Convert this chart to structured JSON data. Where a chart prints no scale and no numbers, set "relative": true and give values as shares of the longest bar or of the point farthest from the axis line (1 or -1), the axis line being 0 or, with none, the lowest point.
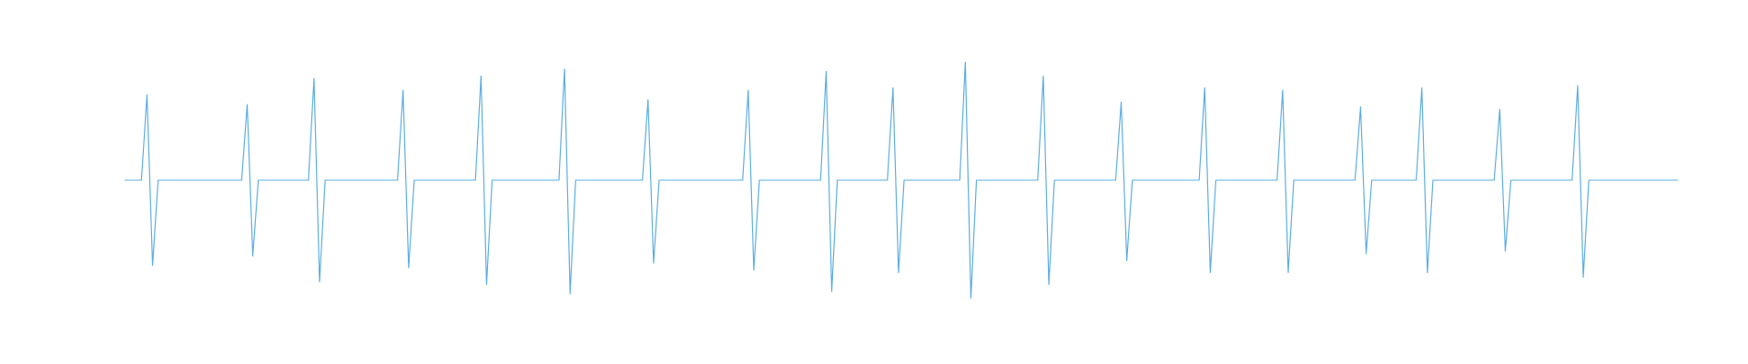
{
  "chart_data": {
    "type": "line",
    "relative": true,
    "tick_labels": false,
    "marker": "none",
    "categories": [
      null,
      null,
      null,
      null,
      null,
      null,
      null,
      null,
      null,
      null,
      null,
      null,
      null,
      null,
      null,
      null,
      null,
      null,
      null,
      null,
      null,
      null,
      null,
      null,
      null,
      null,
      null,
      null,
      null,
      null,
      null,
      null,
      null,
      null,
      null,
      null,
      null,
      null,
      null,
      null,
      null,
      null,
      null,
      null,
      null,
      null,
      null,
      null,
      null,
      null,
      null,
      null,
      null,
      null,
      null,
      null,
      null,
      null,
      null,
      null,
      null,
      null,
      null,
      null,
      null,
      null,
      null,
      null,
      null,
      null,
      null,
      null,
      null,
      null,
      null,
      null,
      null,
      null,
      null,
      null,
      null,
      null,
      null,
      null,
      null,
      null,
      null,
      null,
      null,
      null,
      null,
      null,
      null,
      null,
      null,
      null,
      null,
      null,
      null,
      null,
      null,
      null,
      null,
      null,
      null,
      null,
      null,
      null,
      null,
      null,
      null,
      null,
      null,
      null,
      null,
      null,
      null,
      null,
      null,
      null,
      null,
      null,
      null,
      null,
      null,
      null,
      null,
      null,
      null,
      null,
      null,
      null,
      null,
      null,
      null,
      null,
      null,
      null,
      null,
      null,
      null,
      null,
      null,
      null,
      null,
      null,
      null,
      null,
      null,
      null,
      null,
      null,
      null,
      null,
      null,
      null,
      null,
      null,
      null,
      null,
      null,
      null,
      null,
      null,
      null,
      null,
      null,
      null,
      null,
      null,
      null,
      null,
      null,
      null,
      null,
      null,
      null,
      null,
      null,
      null,
      null,
      null,
      null,
      null,
      null,
      null,
      null,
      null,
      null,
      null,
      null,
      null,
      null,
      null,
      null,
      null,
      null,
      null,
      null,
      null,
      null,
      null,
      null,
      null,
      null,
      null,
      null,
      null,
      null,
      null,
      null,
      null,
      null,
      null,
      null,
      null,
      null,
      null,
      null,
      null,
      null,
      null,
      null,
      null,
      null,
      null,
      null,
      null,
      null,
      null,
      null,
      null,
      null,
      null,
      null,
      null,
      null,
      null,
      null,
      null,
      null,
      null,
      null,
      null,
      null,
      null,
      null,
      null,
      null,
      null,
      null,
      null,
      null,
      null,
      null,
      null,
      null,
      null,
      null,
      null,
      null,
      null,
      null,
      null,
      null,
      null,
      null,
      null,
      null,
      null,
      null,
      null,
      null,
      null,
      null,
      null,
      null,
      null,
      null,
      null
    ],
    "series": [
      {
        "color": "#5dade2",
        "values": [
          0.5,
          0.5,
          0.5,
          0.5,
          0.86,
          0.14,
          0.5,
          0.5,
          0.5,
          0.5,
          0.5,
          0.5,
          0.5,
          0.5,
          0.5,
          0.5,
          0.5,
          0.5,
          0.5,
          0.5,
          0.5,
          0.5,
          0.82,
          0.18,
          0.5,
          0.5,
          0.5,
          0.5,
          0.5,
          0.5,
          0.5,
          0.5,
          0.5,
          0.5,
          0.93,
          0.07,
          0.5,
          0.5,
          0.5,
          0.5,
          0.5,
          0.5,
          0.5,
          0.5,
          0.5,
          0.5,
          0.5,
          0.5,
          0.5,
          0.5,
          0.88,
          0.13,
          0.5,
          0.5,
          0.5,
          0.5,
          0.5,
          0.5,
          0.5,
          0.5,
          0.5,
          0.5,
          0.5,
          0.5,
          0.94,
          0.06,
          0.5,
          0.5,
          0.5,
          0.5,
          0.5,
          0.5,
          0.5,
          0.5,
          0.5,
          0.5,
          0.5,
          0.5,
          0.5,
          0.97,
          0.02,
          0.5,
          0.5,
          0.5,
          0.5,
          0.5,
          0.5,
          0.5,
          0.5,
          0.5,
          0.5,
          0.5,
          0.5,
          0.5,
          0.84,
          0.15,
          0.5,
          0.5,
          0.5,
          0.5,
          0.5,
          0.5,
          0.5,
          0.5,
          0.5,
          0.5,
          0.5,
          0.5,
          0.5,
          0.5,
          0.5,
          0.5,
          0.88,
          0.12,
          0.5,
          0.5,
          0.5,
          0.5,
          0.5,
          0.5,
          0.5,
          0.5,
          0.5,
          0.5,
          0.5,
          0.5,
          0.96,
          0.03,
          0.5,
          0.5,
          0.5,
          0.5,
          0.5,
          0.5,
          0.5,
          0.5,
          0.5,
          0.5,
          0.89,
          0.11,
          0.5,
          0.5,
          0.5,
          0.5,
          0.5,
          0.5,
          0.5,
          0.5,
          0.5,
          0.5,
          0.5,
          1,
          0,
          0.5,
          0.5,
          0.5,
          0.5,
          0.5,
          0.5,
          0.5,
          0.5,
          0.5,
          0.5,
          0.5,
          0.5,
          0.94,
          0.06,
          0.5,
          0.5,
          0.5,
          0.5,
          0.5,
          0.5,
          0.5,
          0.5,
          0.5,
          0.5,
          0.5,
          0.5,
          0.83,
          0.16,
          0.5,
          0.5,
          0.5,
          0.5,
          0.5,
          0.5,
          0.5,
          0.5,
          0.5,
          0.5,
          0.5,
          0.5,
          0.5,
          0.89,
          0.11,
          0.5,
          0.5,
          0.5,
          0.5,
          0.5,
          0.5,
          0.5,
          0.5,
          0.5,
          0.5,
          0.5,
          0.5,
          0.88,
          0.11,
          0.5,
          0.5,
          0.5,
          0.5,
          0.5,
          0.5,
          0.5,
          0.5,
          0.5,
          0.5,
          0.5,
          0.5,
          0.81,
          0.19,
          0.5,
          0.5,
          0.5,
          0.5,
          0.5,
          0.5,
          0.5,
          0.5,
          0.5,
          0.89,
          0.11,
          0.5,
          0.5,
          0.5,
          0.5,
          0.5,
          0.5,
          0.5,
          0.5,
          0.5,
          0.5,
          0.5,
          0.5,
          0.8,
          0.2,
          0.5,
          0.5,
          0.5,
          0.5,
          0.5,
          0.5,
          0.5,
          0.5,
          0.5,
          0.5,
          0.5,
          0.5,
          0.9,
          0.09,
          0.5,
          0.5,
          0.5,
          0.5,
          0.5,
          0.5,
          0.5,
          0.5,
          0.5,
          0.5,
          0.5,
          0.5,
          0.5,
          0.5,
          0.5,
          0.5,
          0.5
        ]
      }
    ]
  }
}
